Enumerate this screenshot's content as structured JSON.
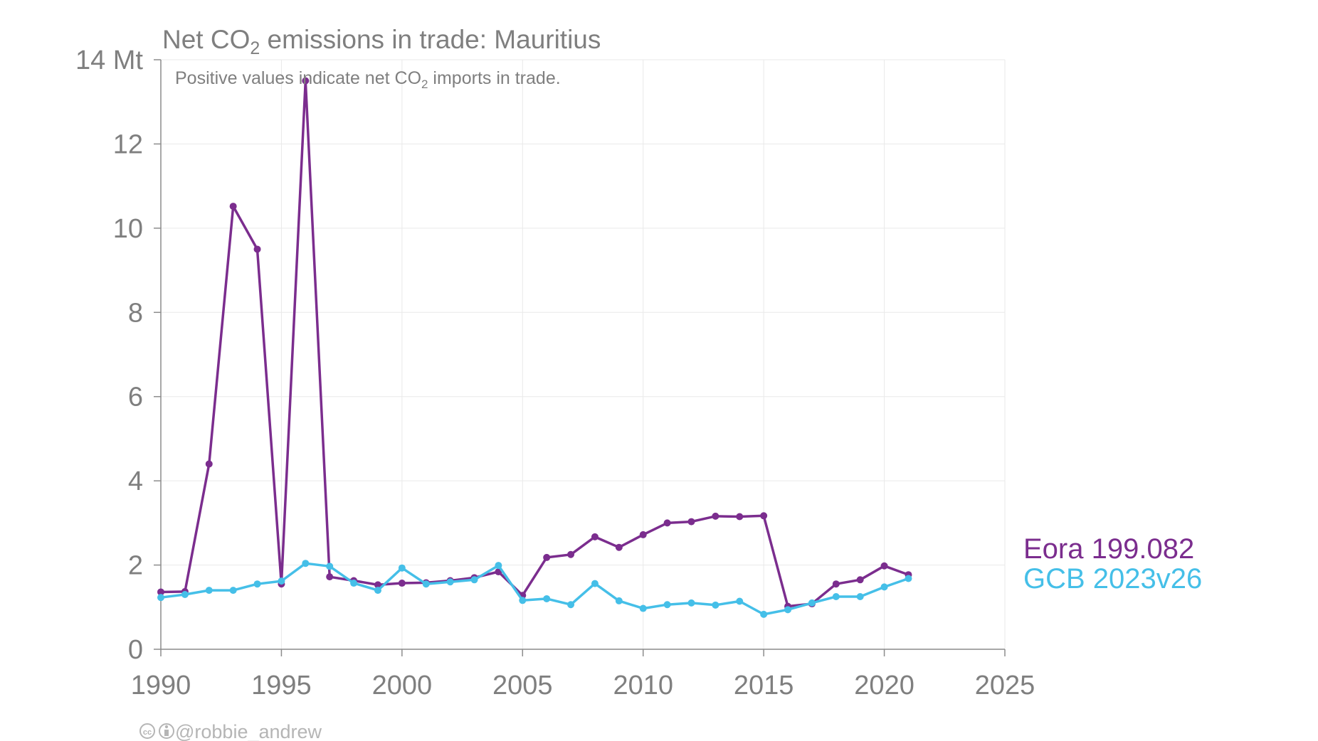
{
  "chart_data": {
    "type": "line",
    "title": {
      "prefix": "Net CO",
      "sub": "2",
      "suffix": " emissions in trade: Mauritius"
    },
    "subtitle": {
      "prefix": "Positive values indicate net CO",
      "sub": "2",
      "suffix": " imports in trade."
    },
    "unit": "Mt",
    "xlim": [
      1990,
      2025
    ],
    "ylim": [
      0,
      14
    ],
    "x_ticks": [
      "1990",
      "1995",
      "2000",
      "2005",
      "2010",
      "2015",
      "2020",
      "2025"
    ],
    "y_ticks": [
      "0",
      "2",
      "4",
      "6",
      "8",
      "10",
      "12",
      "14 Mt"
    ],
    "grid": true,
    "legend_position": "right, at end of lines",
    "x": [
      1990,
      1991,
      1992,
      1993,
      1994,
      1995,
      1996,
      1997,
      1998,
      1999,
      2000,
      2001,
      2002,
      2003,
      2004,
      2005,
      2006,
      2007,
      2008,
      2009,
      2010,
      2011,
      2012,
      2013,
      2014,
      2015,
      2016,
      2017,
      2018,
      2019,
      2020,
      2021
    ],
    "series": [
      {
        "name": "Eora 199.082",
        "color": "#7b2d8e",
        "values": [
          1.36,
          1.37,
          4.4,
          10.52,
          9.5,
          1.55,
          13.5,
          1.72,
          1.63,
          1.53,
          1.57,
          1.58,
          1.63,
          1.7,
          1.84,
          1.28,
          2.18,
          2.25,
          2.67,
          2.42,
          2.72,
          3.0,
          3.03,
          3.16,
          3.15,
          3.17,
          1.02,
          1.08,
          1.55,
          1.65,
          1.98,
          1.77
        ]
      },
      {
        "name": "GCB 2023v26",
        "color": "#45bfe8",
        "values": [
          1.23,
          1.3,
          1.4,
          1.4,
          1.55,
          1.62,
          2.04,
          1.97,
          1.57,
          1.4,
          1.93,
          1.55,
          1.6,
          1.65,
          1.99,
          1.16,
          1.2,
          1.06,
          1.56,
          1.15,
          0.97,
          1.06,
          1.1,
          1.05,
          1.14,
          0.83,
          0.94,
          1.1,
          1.25,
          1.25,
          1.48,
          1.68
        ]
      }
    ]
  },
  "credit": {
    "icons": "cc-by-icon",
    "handle": "@robbie_andrew"
  }
}
